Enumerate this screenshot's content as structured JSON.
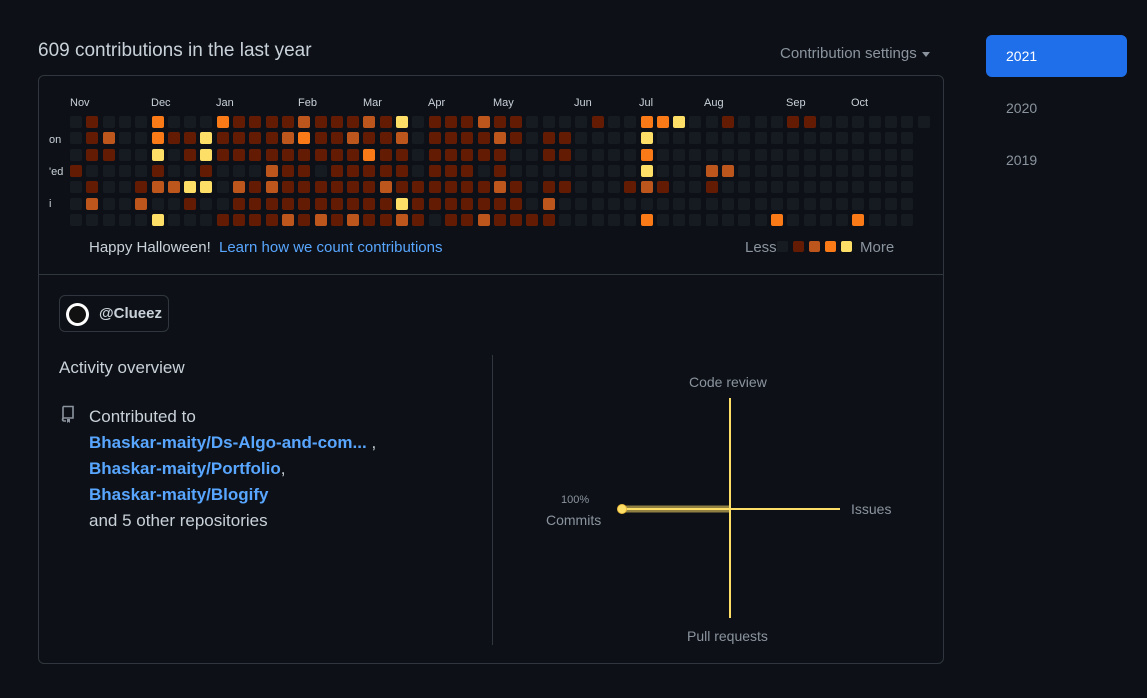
{
  "header": {
    "title": "609 contributions in the last year",
    "settings_label": "Contribution settings"
  },
  "calendar": {
    "months": [
      "Nov",
      "Dec",
      "Jan",
      "Feb",
      "Mar",
      "Apr",
      "May",
      "Jun",
      "Jul",
      "Aug",
      "Sep",
      "Oct"
    ],
    "day_labels": [
      "on",
      "'ed",
      "i"
    ],
    "colors": [
      "#161b22",
      "#631c03",
      "#bd561d",
      "#fa7a18",
      "#fddf68"
    ],
    "weeks": [
      [
        0,
        0,
        0,
        1,
        0,
        0,
        0
      ],
      [
        1,
        1,
        1,
        0,
        1,
        2,
        0
      ],
      [
        0,
        2,
        1,
        0,
        0,
        0,
        0
      ],
      [
        0,
        0,
        0,
        0,
        0,
        0,
        0
      ],
      [
        0,
        0,
        0,
        0,
        1,
        2,
        0
      ],
      [
        3,
        3,
        4,
        1,
        2,
        0,
        4
      ],
      [
        0,
        1,
        0,
        0,
        2,
        0,
        0
      ],
      [
        0,
        1,
        1,
        0,
        4,
        1,
        0
      ],
      [
        0,
        4,
        4,
        1,
        4,
        0,
        0
      ],
      [
        3,
        1,
        1,
        0,
        0,
        0,
        1
      ],
      [
        1,
        1,
        1,
        0,
        2,
        1,
        1
      ],
      [
        1,
        1,
        1,
        0,
        1,
        1,
        1
      ],
      [
        1,
        1,
        1,
        2,
        2,
        1,
        1
      ],
      [
        1,
        2,
        1,
        1,
        1,
        1,
        2
      ],
      [
        2,
        3,
        1,
        1,
        1,
        1,
        1
      ],
      [
        1,
        1,
        1,
        0,
        1,
        1,
        2
      ],
      [
        1,
        1,
        1,
        1,
        1,
        1,
        1
      ],
      [
        1,
        2,
        1,
        1,
        1,
        1,
        2
      ],
      [
        2,
        1,
        3,
        1,
        1,
        1,
        1
      ],
      [
        1,
        1,
        1,
        1,
        2,
        1,
        1
      ],
      [
        4,
        2,
        1,
        1,
        1,
        4,
        2
      ],
      [
        0,
        0,
        0,
        0,
        1,
        1,
        1
      ],
      [
        1,
        1,
        1,
        1,
        1,
        1,
        0
      ],
      [
        1,
        1,
        1,
        1,
        1,
        1,
        1
      ],
      [
        1,
        1,
        1,
        1,
        1,
        1,
        1
      ],
      [
        2,
        1,
        1,
        0,
        1,
        1,
        2
      ],
      [
        1,
        2,
        1,
        1,
        2,
        1,
        1
      ],
      [
        1,
        1,
        0,
        0,
        1,
        1,
        1
      ],
      [
        0,
        0,
        0,
        0,
        0,
        0,
        1
      ],
      [
        0,
        1,
        1,
        0,
        1,
        2,
        1
      ],
      [
        0,
        1,
        1,
        0,
        1,
        0,
        0
      ],
      [
        0,
        0,
        0,
        0,
        0,
        0,
        0
      ],
      [
        1,
        0,
        0,
        0,
        0,
        0,
        0
      ],
      [
        0,
        0,
        0,
        0,
        0,
        0,
        0
      ],
      [
        0,
        0,
        0,
        0,
        1,
        0,
        0
      ],
      [
        3,
        4,
        3,
        4,
        2,
        0,
        3
      ],
      [
        3,
        0,
        0,
        0,
        1,
        0,
        0
      ],
      [
        4,
        0,
        0,
        0,
        0,
        0,
        0
      ],
      [
        0,
        0,
        0,
        0,
        0,
        0,
        0
      ],
      [
        0,
        0,
        0,
        2,
        1,
        0,
        0
      ],
      [
        1,
        0,
        0,
        2,
        0,
        0,
        0
      ],
      [
        0,
        0,
        0,
        0,
        0,
        0,
        0
      ],
      [
        0,
        0,
        0,
        0,
        0,
        0,
        0
      ],
      [
        0,
        0,
        0,
        0,
        0,
        0,
        3
      ],
      [
        1,
        0,
        0,
        0,
        0,
        0,
        0
      ],
      [
        1,
        0,
        0,
        0,
        0,
        0,
        0
      ],
      [
        0,
        0,
        0,
        0,
        0,
        0,
        0
      ],
      [
        0,
        0,
        0,
        0,
        0,
        0,
        0
      ],
      [
        0,
        0,
        0,
        0,
        0,
        0,
        3
      ],
      [
        0,
        0,
        0,
        0,
        0,
        0,
        0
      ],
      [
        0,
        0,
        0,
        0,
        0,
        0,
        0
      ],
      [
        0,
        0,
        0,
        0,
        0,
        0,
        0
      ],
      [
        0
      ]
    ],
    "footer_text": "Happy Halloween!",
    "learn_link": "Learn how we count contributions",
    "legend_less": "Less",
    "legend_more": "More"
  },
  "user": {
    "handle": "@Clueez"
  },
  "activity": {
    "title": "Activity overview",
    "contributed_prefix": "Contributed to",
    "repos": [
      "Bhaskar-maity/Ds-Algo-and-com...",
      "Bhaskar-maity/Portfolio",
      "Bhaskar-maity/Blogify"
    ],
    "separator_1": " ,",
    "separator_2": ",",
    "other_repos": "and 5 other repositories"
  },
  "radar": {
    "labels": {
      "code_review": "Code review",
      "issues": "Issues",
      "pull_requests": "Pull requests",
      "commits": "Commits",
      "commits_pct": "100%"
    },
    "percentages": {
      "commits": 100,
      "issues": 0,
      "code_review": 0,
      "pull_requests": 0
    },
    "line_color": "#fddf68"
  },
  "years": {
    "items": [
      "2021",
      "2020",
      "2019"
    ],
    "selected": "2021",
    "selected_color": "#1f6feb"
  }
}
